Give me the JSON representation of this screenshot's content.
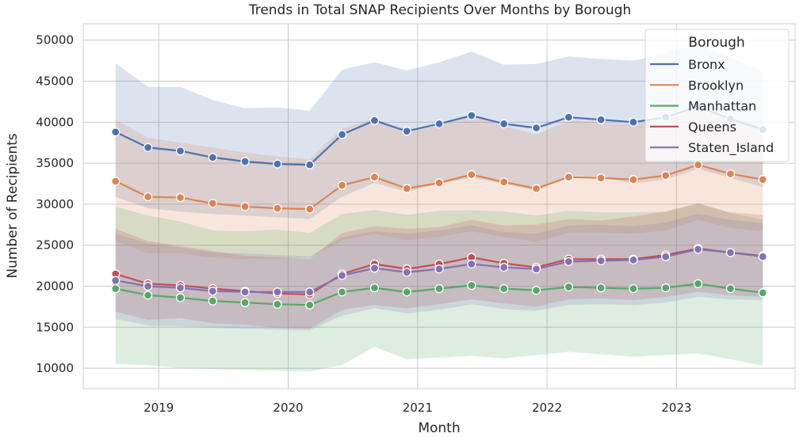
{
  "chart_data": {
    "type": "line",
    "title": "Trends in Total SNAP Recipients Over Months by Borough",
    "xlabel": "Month",
    "ylabel": "Number of Recipients",
    "x": [
      "2018-09",
      "2018-12",
      "2019-03",
      "2019-06",
      "2019-09",
      "2019-12",
      "2020-03",
      "2020-06",
      "2020-09",
      "2020-12",
      "2021-03",
      "2021-06",
      "2021-09",
      "2021-12",
      "2022-03",
      "2022-06",
      "2022-09",
      "2022-12",
      "2023-03",
      "2023-06",
      "2023-09"
    ],
    "xticks": [
      "2019",
      "2020",
      "2021",
      "2022",
      "2023"
    ],
    "xtick_values": [
      "2019-01",
      "2020-01",
      "2021-01",
      "2022-01",
      "2023-01"
    ],
    "xlim": [
      "2018-06",
      "2023-12"
    ],
    "ylim": [
      7500,
      52000
    ],
    "yticks": [
      10000,
      15000,
      20000,
      25000,
      30000,
      35000,
      40000,
      45000,
      50000
    ],
    "grid": true,
    "legend": {
      "title": "Borough",
      "position": "top-right"
    },
    "series": [
      {
        "name": "Bronx",
        "color": "#4c72b0",
        "values": [
          38800,
          36900,
          36500,
          35700,
          35200,
          34900,
          34800,
          38500,
          40200,
          38900,
          39800,
          40800,
          39800,
          39300,
          40600,
          40300,
          40000,
          40600,
          41900,
          40400,
          39100
        ],
        "upper": [
          47200,
          44300,
          44300,
          42700,
          41700,
          41800,
          41400,
          46400,
          47300,
          46300,
          47300,
          48600,
          47000,
          47100,
          48000,
          47700,
          47500,
          48400,
          49500,
          47900,
          46200
        ],
        "lower": [
          30900,
          29500,
          29100,
          28800,
          28600,
          28400,
          28200,
          30900,
          32600,
          31500,
          32500,
          33200,
          32500,
          31600,
          33500,
          33300,
          32500,
          33000,
          34300,
          33200,
          32100
        ]
      },
      {
        "name": "Brooklyn",
        "color": "#dd8452",
        "values": [
          32800,
          30900,
          30800,
          30100,
          29700,
          29500,
          29400,
          32300,
          33300,
          31900,
          32600,
          33600,
          32700,
          31900,
          33300,
          33200,
          33000,
          33500,
          34800,
          33700,
          33000
        ],
        "upper": [
          40300,
          38100,
          37500,
          36900,
          36300,
          35800,
          35500,
          39200,
          40400,
          38700,
          39600,
          40700,
          39500,
          38500,
          40200,
          40000,
          39700,
          40300,
          41500,
          40400,
          39400
        ],
        "lower": [
          25500,
          24000,
          24000,
          23500,
          23300,
          23300,
          23500,
          25600,
          26400,
          25600,
          26000,
          26700,
          26000,
          25400,
          26500,
          26500,
          26400,
          26800,
          28100,
          27100,
          26700
        ]
      },
      {
        "name": "Manhattan",
        "color": "#55a868",
        "values": [
          19700,
          18900,
          18600,
          18200,
          18000,
          17800,
          17700,
          19300,
          19800,
          19300,
          19700,
          20100,
          19700,
          19500,
          19900,
          19800,
          19700,
          19800,
          20300,
          19700,
          19200
        ],
        "upper": [
          29700,
          28600,
          27900,
          26800,
          26700,
          26900,
          26500,
          28800,
          29300,
          28700,
          29200,
          29300,
          29100,
          28600,
          29200,
          29000,
          29000,
          29100,
          30100,
          28900,
          28100
        ],
        "lower": [
          10500,
          10400,
          10000,
          9900,
          9800,
          9700,
          9600,
          10400,
          12600,
          11100,
          11300,
          11500,
          11200,
          11600,
          12000,
          11700,
          11400,
          11600,
          11800,
          11100,
          10300
        ]
      },
      {
        "name": "Queens",
        "color": "#c44e52",
        "values": [
          21500,
          20300,
          20100,
          19700,
          19400,
          19100,
          19000,
          21500,
          22700,
          22100,
          22700,
          23500,
          22800,
          22300,
          23300,
          23300,
          23300,
          23800,
          24600,
          24100,
          23700
        ],
        "upper": [
          27000,
          25500,
          24900,
          24300,
          23700,
          23500,
          23300,
          26500,
          27300,
          27000,
          27200,
          28100,
          27400,
          27500,
          28200,
          28000,
          28500,
          29100,
          30100,
          29000,
          28700
        ],
        "lower": [
          16900,
          15900,
          16100,
          15500,
          15300,
          14900,
          14800,
          17100,
          17700,
          17300,
          17800,
          18400,
          17900,
          17500,
          18400,
          18500,
          18300,
          18700,
          19300,
          18900,
          18700
        ]
      },
      {
        "name": "Staten_Island",
        "color": "#8172b3",
        "values": [
          20700,
          20000,
          19800,
          19400,
          19300,
          19300,
          19300,
          21300,
          22200,
          21700,
          22100,
          22700,
          22300,
          22100,
          23000,
          23100,
          23200,
          23600,
          24500,
          24100,
          23600
        ],
        "upper": [
          26400,
          25200,
          24700,
          24100,
          24000,
          23800,
          23600,
          26000,
          26700,
          26400,
          26800,
          27400,
          26600,
          26400,
          27400,
          27500,
          27300,
          27800,
          28800,
          28100,
          27700
        ],
        "lower": [
          16000,
          15200,
          15100,
          14900,
          14800,
          14700,
          14600,
          16400,
          17300,
          16700,
          17100,
          17800,
          17200,
          17000,
          17700,
          17800,
          17700,
          18000,
          18700,
          18400,
          18300
        ]
      }
    ]
  }
}
